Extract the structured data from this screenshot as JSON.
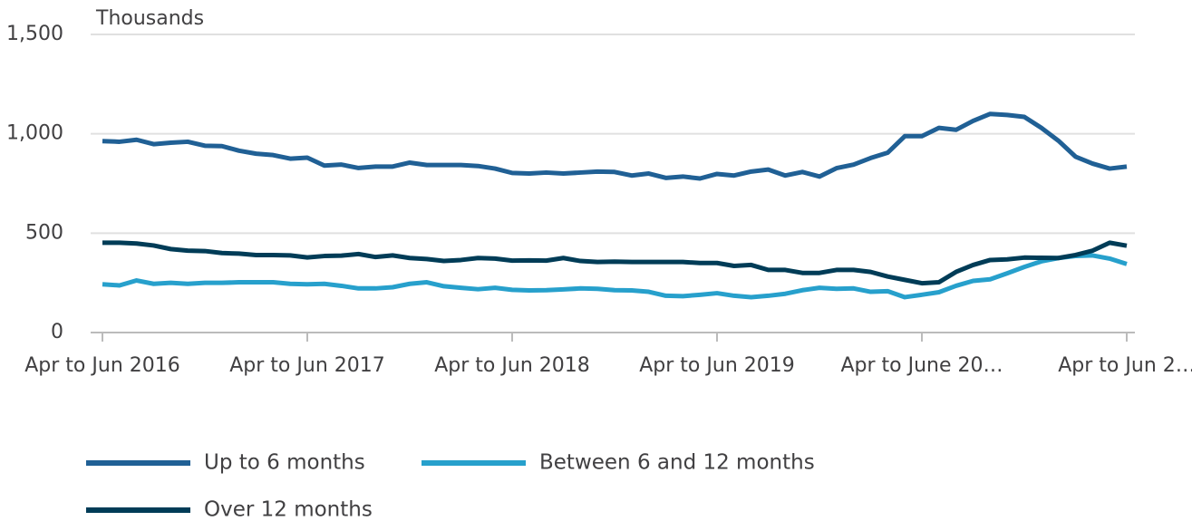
{
  "chart_data": {
    "type": "line",
    "y_label": "Thousands",
    "categories": [
      "Apr to Jun 2016",
      null,
      null,
      null,
      null,
      null,
      null,
      null,
      null,
      null,
      null,
      null,
      "Apr to Jun 2017",
      null,
      null,
      null,
      null,
      null,
      null,
      null,
      null,
      null,
      null,
      null,
      "Apr to Jun 2018",
      null,
      null,
      null,
      null,
      null,
      null,
      null,
      null,
      null,
      null,
      null,
      "Apr to Jun 2019",
      null,
      null,
      null,
      null,
      null,
      null,
      null,
      null,
      null,
      null,
      null,
      "Apr to June 20…",
      null,
      null,
      null,
      null,
      null,
      null,
      null,
      null,
      null,
      null,
      null,
      "Apr to Jun 2…"
    ],
    "series": [
      {
        "name": "Up to 6 months",
        "color": "#206095",
        "values": [
          963,
          960,
          970,
          948,
          955,
          960,
          940,
          938,
          915,
          900,
          893,
          875,
          880,
          840,
          845,
          828,
          835,
          835,
          855,
          843,
          843,
          843,
          838,
          825,
          803,
          800,
          805,
          800,
          805,
          810,
          808,
          790,
          800,
          778,
          785,
          775,
          798,
          790,
          810,
          820,
          790,
          808,
          785,
          827,
          845,
          878,
          905,
          988,
          988,
          1030,
          1020,
          1065,
          1100,
          1095,
          1085,
          1030,
          965,
          885,
          850,
          825,
          835
        ]
      },
      {
        "name": "Between 6 and 12 months",
        "color": "#27a0cc",
        "values": [
          243,
          237,
          262,
          245,
          250,
          245,
          250,
          250,
          253,
          253,
          253,
          245,
          243,
          245,
          235,
          222,
          222,
          228,
          245,
          253,
          233,
          225,
          218,
          225,
          215,
          212,
          213,
          217,
          222,
          220,
          213,
          212,
          205,
          185,
          183,
          190,
          198,
          185,
          178,
          185,
          195,
          213,
          225,
          220,
          222,
          205,
          208,
          178,
          190,
          203,
          235,
          260,
          268,
          298,
          330,
          358,
          375,
          385,
          388,
          372,
          345
        ]
      },
      {
        "name": "Over 12 months",
        "color": "#003c57",
        "values": [
          452,
          452,
          448,
          438,
          420,
          412,
          410,
          400,
          397,
          390,
          390,
          388,
          378,
          385,
          387,
          395,
          380,
          388,
          375,
          370,
          360,
          365,
          375,
          372,
          362,
          363,
          362,
          375,
          360,
          355,
          357,
          355,
          355,
          355,
          355,
          350,
          350,
          335,
          340,
          315,
          315,
          300,
          300,
          315,
          315,
          305,
          282,
          265,
          248,
          253,
          305,
          340,
          365,
          368,
          377,
          376,
          375,
          390,
          412,
          452,
          437
        ]
      }
    ],
    "ylim": [
      0,
      1500
    ],
    "yticks": [
      0,
      {
        "value": 500,
        "label": "500"
      },
      {
        "value": 1000,
        "label": "1,000"
      },
      {
        "value": 1500,
        "label": "1,500"
      }
    ],
    "grid": true,
    "legend": "bottom"
  }
}
